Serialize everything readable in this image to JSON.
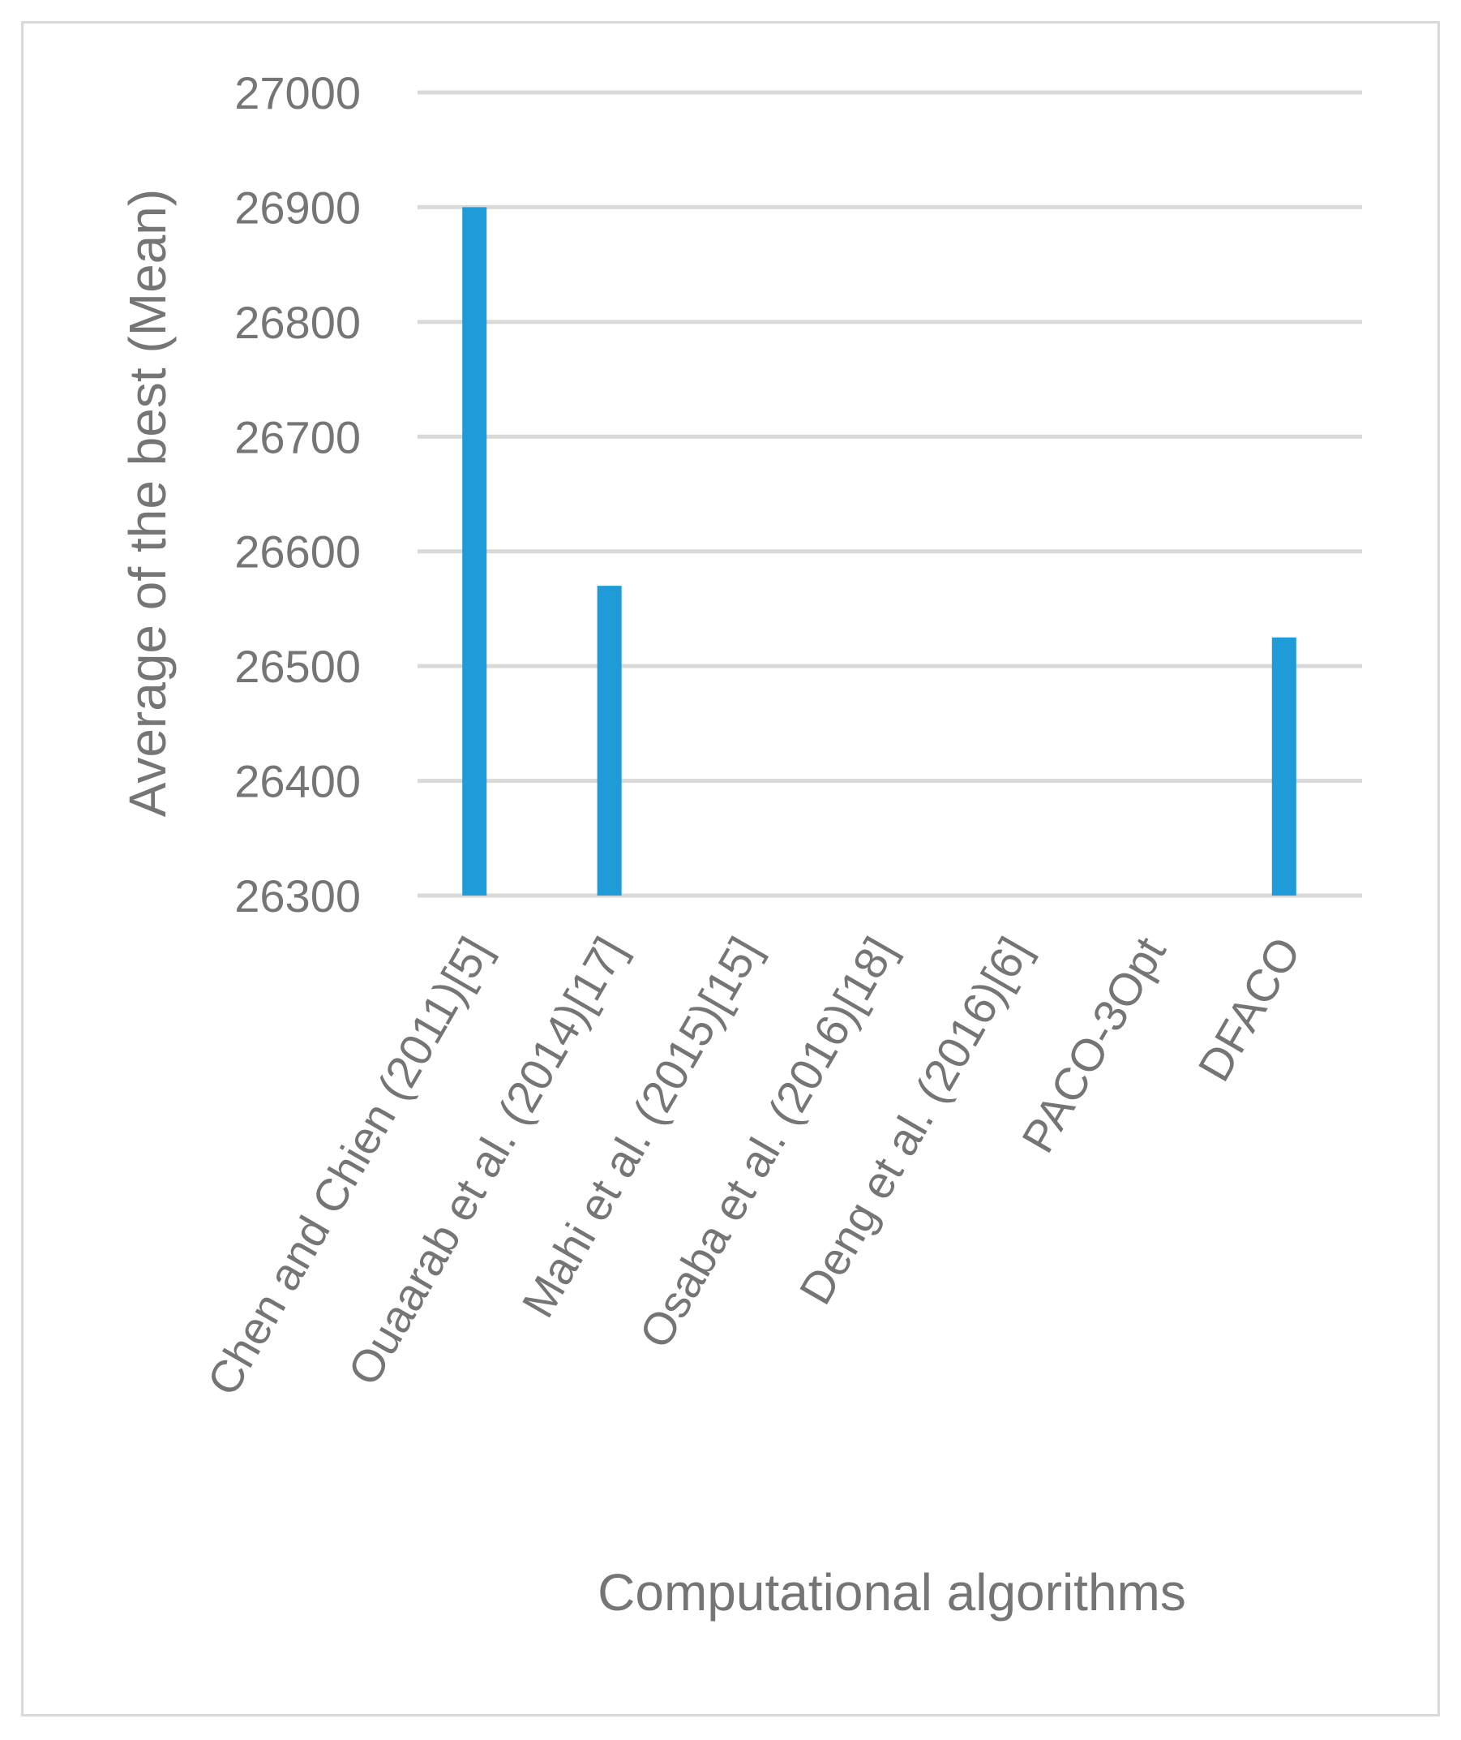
{
  "chart_data": {
    "type": "bar",
    "title": "",
    "xlabel": "Computational algorithms",
    "ylabel": "Average of the best  (Mean)",
    "ylim": [
      26300,
      27000
    ],
    "yticks": [
      26300,
      26400,
      26500,
      26600,
      26700,
      26800,
      26900,
      27000
    ],
    "grid": true,
    "legend": "none",
    "bar_color": "#1f9bd7",
    "grid_color": "#d9d9d9",
    "text_color": "#757575",
    "categories": [
      "Chen and Chien (2011)[5]",
      "Ouaarab et al. (2014)[17]",
      "Mahi et al. (2015)[15]",
      "Osaba et al. (2016)[18]",
      "Deng et al. (2016)[6]",
      "PACO-3Opt",
      "DFACO"
    ],
    "values": [
      26900,
      26570,
      null,
      null,
      null,
      null,
      26525
    ]
  }
}
